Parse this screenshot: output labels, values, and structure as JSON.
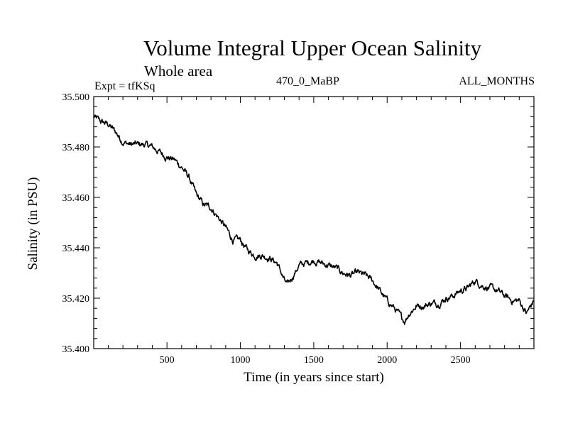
{
  "chart_data": {
    "type": "line",
    "title": "Volume Integral Upper Ocean Salinity",
    "subtitle": "Whole area",
    "expt_label": "Expt = tfKSq",
    "center_label": "470_0_MaBP",
    "right_label": "ALL_MONTHS",
    "xlabel": "Time (in years since start)",
    "ylabel": "Salinity (in PSU)",
    "xlim": [
      1,
      3000
    ],
    "ylim": [
      35.4,
      35.5
    ],
    "xticks": [
      500,
      1000,
      1500,
      2000,
      2500
    ],
    "xtick_labels": [
      "500",
      "1000",
      "1500",
      "2000",
      "2500"
    ],
    "yticks": [
      35.4,
      35.42,
      35.44,
      35.46,
      35.48,
      35.5
    ],
    "ytick_labels": [
      "35.400",
      "35.420",
      "35.440",
      "35.460",
      "35.480",
      "35.500"
    ],
    "grid": false,
    "series": [
      {
        "name": "Salinity",
        "x": [
          1,
          50,
          100,
          150,
          200,
          250,
          300,
          350,
          400,
          450,
          500,
          550,
          600,
          650,
          700,
          750,
          800,
          850,
          900,
          950,
          1000,
          1050,
          1100,
          1150,
          1200,
          1250,
          1300,
          1320,
          1350,
          1400,
          1450,
          1500,
          1550,
          1600,
          1650,
          1700,
          1750,
          1800,
          1850,
          1900,
          1950,
          2000,
          2050,
          2100,
          2120,
          2150,
          2200,
          2250,
          2300,
          2350,
          2400,
          2450,
          2500,
          2550,
          2600,
          2650,
          2700,
          2750,
          2800,
          2850,
          2900,
          2950,
          3000
        ],
        "values": [
          35.492,
          35.49,
          35.489,
          35.486,
          35.482,
          35.481,
          35.481,
          35.481,
          35.48,
          35.478,
          35.476,
          35.475,
          35.472,
          35.468,
          35.461,
          35.457,
          35.456,
          35.452,
          35.448,
          35.443,
          35.443,
          35.439,
          35.437,
          35.437,
          35.436,
          35.434,
          35.427,
          35.425,
          35.428,
          35.433,
          35.434,
          35.435,
          35.434,
          35.433,
          35.432,
          35.43,
          35.429,
          35.43,
          35.429,
          35.427,
          35.423,
          35.419,
          35.416,
          35.412,
          35.411,
          35.414,
          35.417,
          35.417,
          35.418,
          35.418,
          35.42,
          35.421,
          35.423,
          35.424,
          35.427,
          35.425,
          35.424,
          35.423,
          35.421,
          35.419,
          35.419,
          35.414,
          35.419
        ]
      }
    ]
  }
}
